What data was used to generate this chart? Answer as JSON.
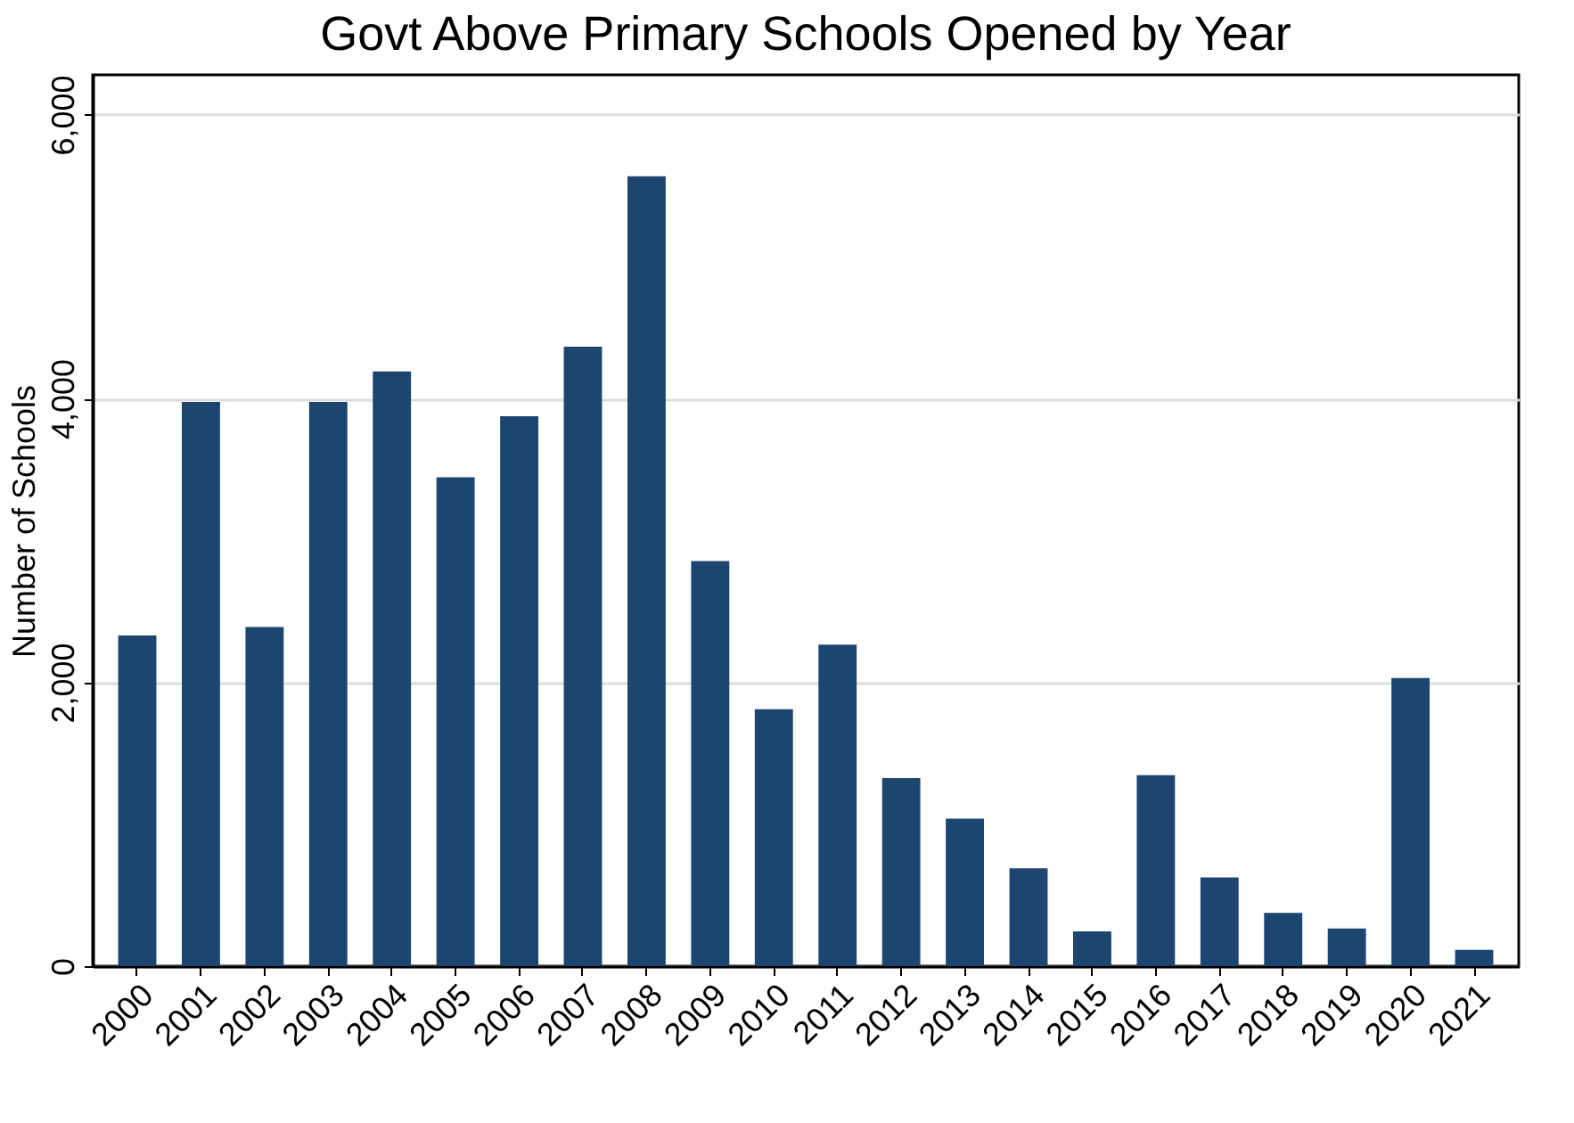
{
  "chart_data": {
    "type": "bar",
    "title": "Govt Above Primary Schools Opened by Year",
    "ylabel": "Number of Schools",
    "categories": [
      "2000",
      "2001",
      "2002",
      "2003",
      "2004",
      "2005",
      "2006",
      "2007",
      "2008",
      "2009",
      "2010",
      "2011",
      "2012",
      "2013",
      "2014",
      "2015",
      "2016",
      "2017",
      "2018",
      "2019",
      "2020",
      "2021"
    ],
    "values": [
      2330,
      3975,
      2390,
      3975,
      4190,
      3445,
      3875,
      4365,
      5565,
      2855,
      1810,
      2265,
      1325,
      1040,
      690,
      245,
      1345,
      625,
      375,
      265,
      2030,
      115
    ],
    "color": "#1c4670",
    "ylim": [
      0,
      6280
    ],
    "yticks": [
      {
        "value": 0,
        "label": "0"
      },
      {
        "value": 2000,
        "label": "2,000"
      },
      {
        "value": 4000,
        "label": "4,000"
      },
      {
        "value": 6000,
        "label": "6,000"
      }
    ],
    "grid": "y"
  }
}
